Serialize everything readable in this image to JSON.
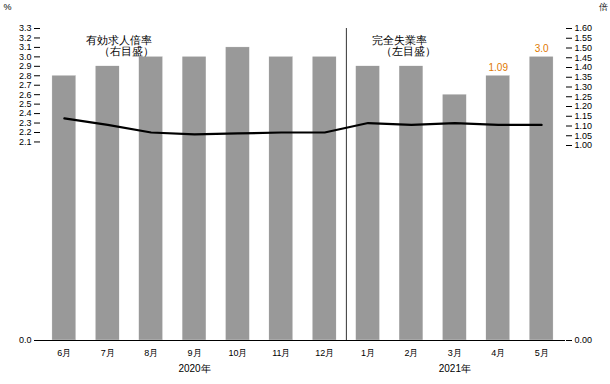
{
  "chart_data": {
    "type": "bar",
    "categories": [
      "6月",
      "7月",
      "8月",
      "9月",
      "10月",
      "11月",
      "12月",
      "1月",
      "2月",
      "3月",
      "4月",
      "5月"
    ],
    "series": [
      {
        "type": "bar",
        "color": "#999999",
        "values": [
          2.8,
          2.9,
          3.0,
          3.0,
          3.1,
          3.0,
          3.0,
          2.9,
          2.9,
          2.6,
          2.8,
          3.0
        ]
      },
      {
        "type": "line",
        "color": "#000000",
        "values": [
          2.35,
          2.28,
          2.2,
          2.18,
          2.19,
          2.2,
          2.2,
          2.3,
          2.28,
          2.3,
          2.28,
          2.28
        ]
      }
    ],
    "ylabel": "%",
    "ylim": [
      0.0,
      3.3
    ],
    "yticks": [
      {
        "value": 0.0,
        "label": "0.0"
      },
      2.1,
      2.2,
      2.3,
      2.4,
      2.5,
      2.6,
      2.7,
      2.8,
      2.9,
      {
        "value": 3.0,
        "label": "3.0"
      },
      3.1,
      3.2,
      3.3
    ],
    "y2label": "倍",
    "y2lim": [
      0.0,
      1.6
    ],
    "y2ticks": [
      {
        "value": 0.0,
        "label": "0.00"
      },
      {
        "value": 1.0,
        "label": "1.00"
      },
      1.05,
      {
        "value": 1.1,
        "label": "1.10"
      },
      1.15,
      {
        "value": 1.2,
        "label": "1.20"
      },
      1.25,
      {
        "value": 1.3,
        "label": "1.30"
      },
      1.35,
      {
        "value": 1.4,
        "label": "1.40"
      },
      1.45,
      {
        "value": 1.5,
        "label": "1.50"
      },
      1.55,
      {
        "value": 1.6,
        "label": "1.60"
      }
    ],
    "annotations": [
      {
        "text": "有効求人倍率",
        "x": 0.5,
        "y": 3.22
      },
      {
        "text": "（右目盛）",
        "x": 0.8,
        "y": 3.1
      },
      {
        "text": "完全失業率",
        "x": 7.1,
        "y": 3.22
      },
      {
        "text": "（左目盛）",
        "x": 7.3,
        "y": 3.1
      },
      {
        "text": "1.09",
        "x": 10,
        "y": 2.85,
        "color": "#e07800"
      },
      {
        "text": "3.0",
        "x": 11,
        "y": 3.05,
        "color": "#e07800"
      }
    ],
    "x_groups": [
      {
        "label": "2020年",
        "from": 0,
        "to": 6
      },
      {
        "label": "2021年",
        "from": 7,
        "to": 11
      }
    ]
  }
}
